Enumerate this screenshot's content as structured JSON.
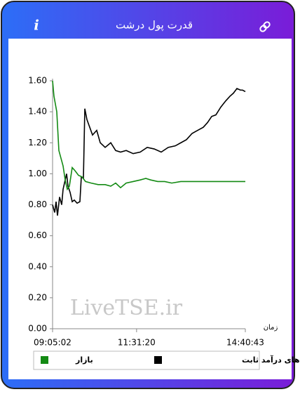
{
  "header": {
    "info_icon": "i"
  },
  "chart_data": {
    "type": "line",
    "title": "قدرت پول درشت",
    "x_label": "زمان",
    "watermark": "LiveTSE.ir",
    "xlim": [
      32702,
      52843
    ],
    "xticks": [
      {
        "value": 32702,
        "label": "09:05:02"
      },
      {
        "value": 41480,
        "label": "11:31:20"
      },
      {
        "value": 52843,
        "label": "14:40:43"
      }
    ],
    "ylim": [
      0,
      1.6
    ],
    "yticks": [
      {
        "value": 0,
        "label": "0.00"
      },
      {
        "value": 0.2,
        "label": "0.20"
      },
      {
        "value": 0.4,
        "label": "0.40"
      },
      {
        "value": 0.6,
        "label": "0.60"
      },
      {
        "value": 0.8,
        "label": "0.80"
      },
      {
        "value": 1,
        "label": "1.00"
      },
      {
        "value": 1.2,
        "label": "1.20"
      },
      {
        "value": 1.4,
        "label": "1.40"
      },
      {
        "value": 1.6,
        "label": "1.60"
      }
    ],
    "series": [
      {
        "name": "صندوق های درآمد ثابت",
        "color": "#000000",
        "x": [
          32702,
          32922,
          33068,
          33215,
          33434,
          33654,
          33801,
          34020,
          34167,
          34313,
          34533,
          34753,
          34972,
          35265,
          35558,
          35705,
          35925,
          36071,
          36291,
          36584,
          36877,
          37316,
          37682,
          38195,
          38781,
          39294,
          39806,
          40392,
          41125,
          41857,
          42590,
          43322,
          44054,
          44787,
          45519,
          46105,
          46691,
          47277,
          47863,
          48449,
          48888,
          49327,
          49767,
          50280,
          50792,
          51232,
          51598,
          51964,
          52330,
          52550,
          52843
        ],
        "values": [
          0.8,
          0.75,
          0.82,
          0.73,
          0.85,
          0.8,
          0.9,
          0.96,
          1.0,
          0.92,
          0.88,
          0.82,
          0.83,
          0.81,
          0.82,
          0.98,
          0.97,
          1.42,
          1.35,
          1.3,
          1.25,
          1.28,
          1.2,
          1.17,
          1.2,
          1.15,
          1.14,
          1.15,
          1.13,
          1.14,
          1.17,
          1.16,
          1.14,
          1.17,
          1.18,
          1.2,
          1.22,
          1.26,
          1.28,
          1.3,
          1.33,
          1.37,
          1.38,
          1.43,
          1.47,
          1.5,
          1.52,
          1.55,
          1.54,
          1.54,
          1.53
        ]
      },
      {
        "name": "بازار",
        "color": "#138a13",
        "x": [
          32702,
          32848,
          32995,
          33141,
          33361,
          33581,
          33801,
          34020,
          34240,
          34460,
          34753,
          35046,
          35412,
          35778,
          36144,
          36730,
          37463,
          38195,
          38781,
          39294,
          39806,
          40392,
          41125,
          41857,
          42443,
          42956,
          43688,
          44420,
          45153,
          46105,
          47716,
          49181,
          51378,
          52843
        ],
        "values": [
          1.6,
          1.5,
          1.45,
          1.4,
          1.15,
          1.1,
          1.05,
          0.96,
          0.9,
          0.92,
          1.04,
          1.02,
          0.99,
          0.98,
          0.95,
          0.94,
          0.93,
          0.93,
          0.92,
          0.94,
          0.91,
          0.94,
          0.95,
          0.96,
          0.97,
          0.96,
          0.95,
          0.95,
          0.94,
          0.95,
          0.95,
          0.95,
          0.95,
          0.95
        ]
      }
    ]
  }
}
